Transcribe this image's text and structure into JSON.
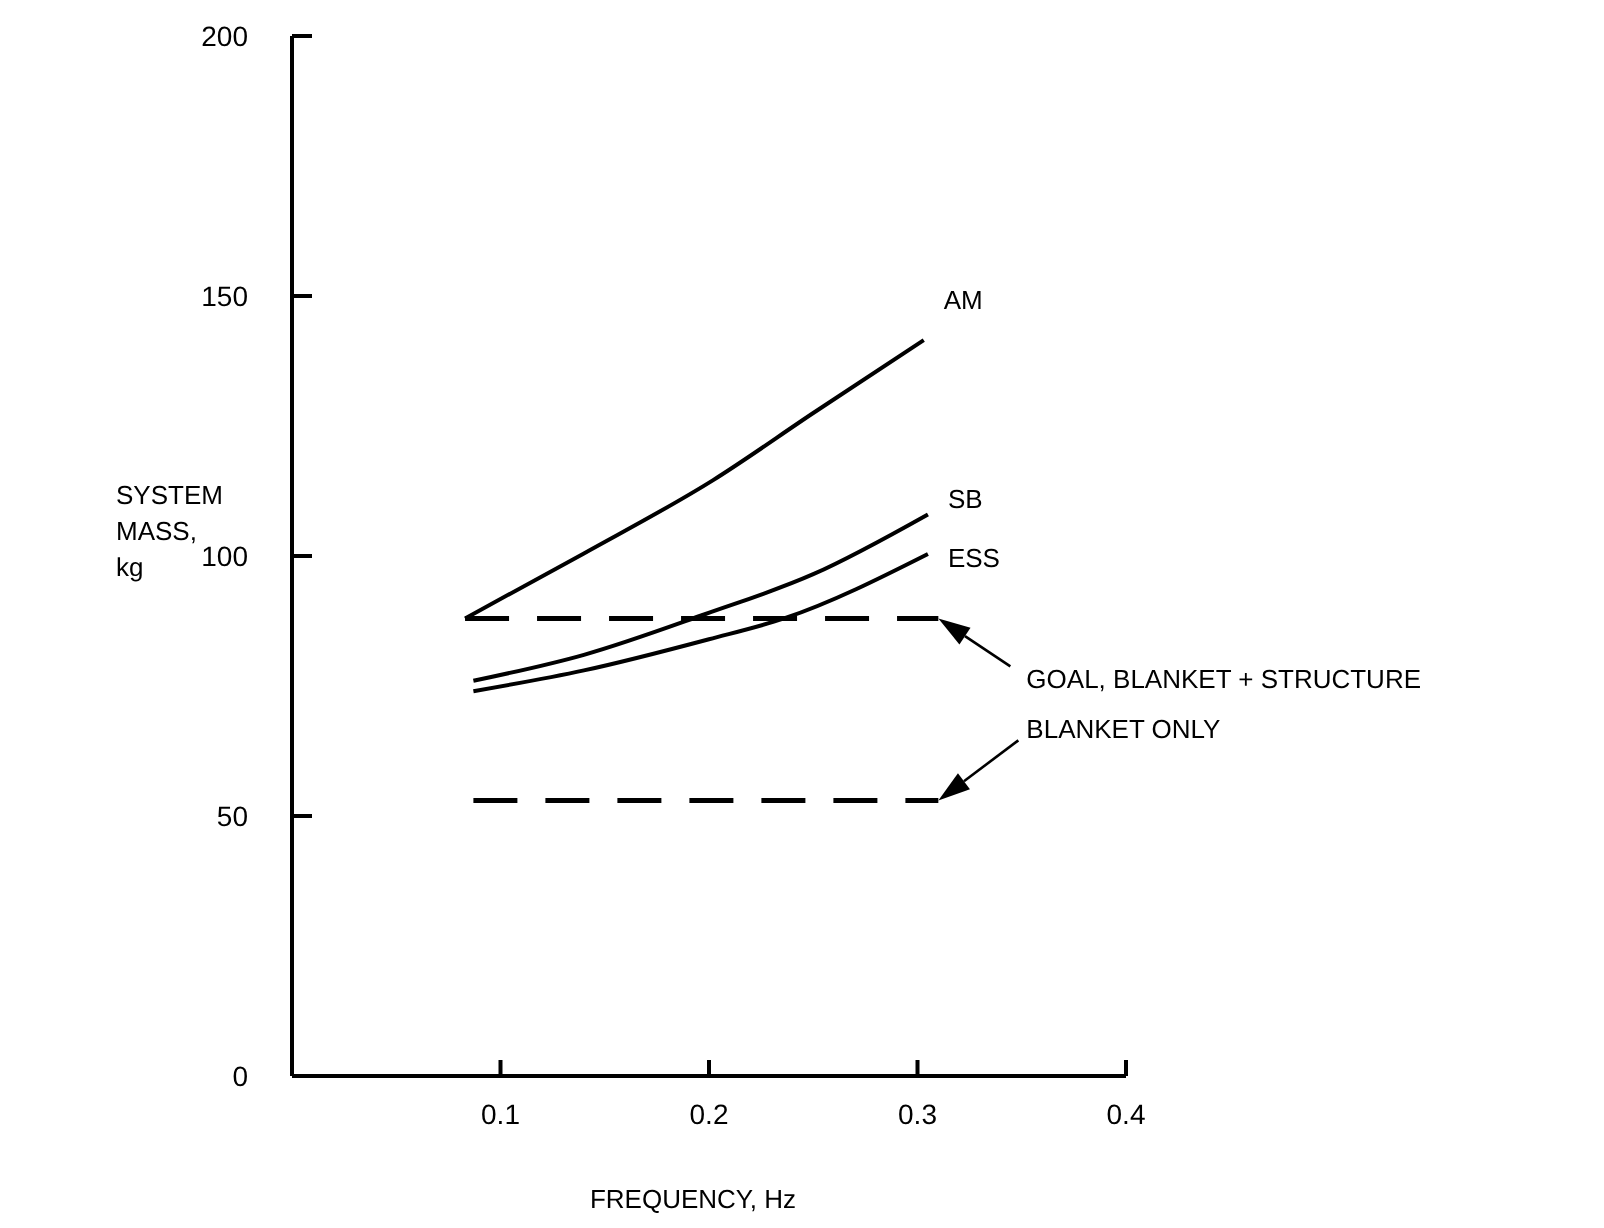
{
  "chart_data": {
    "type": "line",
    "xlabel": "FREQUENCY, Hz",
    "ylabel": "SYSTEM MASS, kg",
    "xlim": [
      0,
      0.4
    ],
    "ylim": [
      0,
      200
    ],
    "xticks": [
      0.1,
      0.2,
      0.3,
      0.4
    ],
    "yticks": [
      0,
      50,
      100,
      150,
      200
    ],
    "grid": false,
    "marker": "none",
    "series": [
      {
        "name": "AM",
        "color": "#000000",
        "x": [
          0.083,
          0.14,
          0.202,
          0.25,
          0.303
        ],
        "values": [
          88,
          100.5,
          114.6,
          127.5,
          141.5
        ]
      },
      {
        "name": "SB",
        "color": "#000000",
        "x": [
          0.087,
          0.14,
          0.198,
          0.25,
          0.305
        ],
        "values": [
          76,
          81,
          88.8,
          96.5,
          108
        ]
      },
      {
        "name": "ESS",
        "color": "#000000",
        "x": [
          0.087,
          0.14,
          0.2,
          0.236,
          0.305
        ],
        "values": [
          74,
          78,
          84,
          88,
          100.4
        ]
      },
      {
        "color": "#000000",
        "line_style": "dashed",
        "x": [
          0.083,
          0.31
        ],
        "values": [
          88,
          88
        ]
      },
      {
        "color": "#000000",
        "line_style": "dashed",
        "x": [
          0.087,
          0.31
        ],
        "values": [
          53,
          53
        ]
      }
    ],
    "annotations": [
      "GOAL, BLANKET + STRUCTURE",
      "BLANKET ONLY"
    ]
  }
}
